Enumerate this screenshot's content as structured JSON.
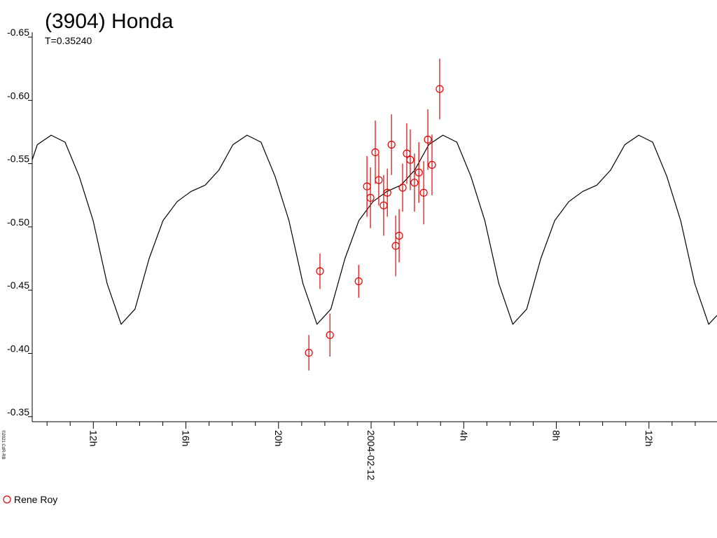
{
  "chart_data": {
    "type": "scatter",
    "title": "(3904) Honda",
    "subtitle": "T=0.35240",
    "credit": "©2021 CdR-RB",
    "y_inverted": true,
    "xlim": [
      -14.64,
      14.94
    ],
    "ylim": [
      -0.65,
      -0.346
    ],
    "xticks": [
      {
        "value": -12,
        "label": "12h"
      },
      {
        "value": -8,
        "label": "16h"
      },
      {
        "value": -4,
        "label": "20h"
      },
      {
        "value": 0,
        "label": "2004-02-12"
      },
      {
        "value": 4,
        "label": "4h"
      },
      {
        "value": 8,
        "label": "8h"
      },
      {
        "value": 12,
        "label": "12h"
      }
    ],
    "xminorticks": [
      -14,
      -13,
      -11,
      -10,
      -9,
      -7,
      -6,
      -5,
      -3,
      -2,
      -1,
      1,
      2,
      3,
      5,
      6,
      7,
      9,
      10,
      11,
      13,
      14
    ],
    "yticks": [
      -0.65,
      {
        "value": -0.6,
        "label": "-0.60"
      },
      -0.55,
      {
        "value": -0.5,
        "label": "-0.50"
      },
      -0.45,
      {
        "value": -0.4,
        "label": "-0.40"
      },
      -0.35
    ],
    "series": [
      {
        "name": "Rene Roy",
        "color": "#e00000",
        "x": [
          -2.69,
          -2.21,
          -1.78,
          -0.54,
          -0.18,
          -0.03,
          0.18,
          0.33,
          0.54,
          0.7,
          0.88,
          1.06,
          1.21,
          1.36,
          1.54,
          1.69,
          1.87,
          2.06,
          2.27,
          2.45,
          2.63,
          2.96
        ],
        "values": [
          -0.4005,
          -0.465,
          -0.4145,
          -0.457,
          -0.532,
          -0.523,
          -0.559,
          -0.537,
          -0.517,
          -0.527,
          -0.565,
          -0.485,
          -0.493,
          -0.531,
          -0.558,
          -0.553,
          -0.535,
          -0.543,
          -0.527,
          -0.569,
          -0.549,
          -0.609
        ],
        "errors": [
          0.014,
          0.014,
          0.017,
          0.013,
          0.024,
          0.024,
          0.025,
          0.02,
          0.024,
          0.019,
          0.024,
          0.024,
          0.021,
          0.019,
          0.024,
          0.024,
          0.023,
          0.024,
          0.025,
          0.024,
          0.024,
          0.024
        ]
      }
    ],
    "fit": {
      "color": "#000000",
      "x": [
        -14.64,
        -14.42,
        -13.82,
        -13.22,
        -12.61,
        -12.01,
        -11.4,
        -10.8,
        -10.2,
        -9.59,
        -8.99,
        -8.38,
        -7.78,
        -7.17,
        -6.57,
        -5.97,
        -5.36,
        -4.76,
        -4.15,
        -3.55,
        -2.94,
        -2.34,
        -1.74,
        -1.13,
        -0.53,
        0.08,
        0.68,
        1.29,
        1.89,
        2.49,
        3.1,
        3.7,
        4.31,
        4.91,
        5.52,
        6.12,
        6.72,
        7.33,
        7.93,
        8.54,
        9.14,
        9.75,
        10.35,
        10.96,
        11.56,
        12.16,
        12.77,
        13.37,
        13.98,
        14.58,
        14.94
      ],
      "values": [
        -0.553,
        -0.565,
        -0.5725,
        -0.567,
        -0.54,
        -0.505,
        -0.455,
        -0.423,
        -0.435,
        -0.475,
        -0.505,
        -0.52,
        -0.528,
        -0.533,
        -0.545,
        -0.565,
        -0.5725,
        -0.567,
        -0.54,
        -0.505,
        -0.455,
        -0.423,
        -0.435,
        -0.475,
        -0.505,
        -0.52,
        -0.528,
        -0.533,
        -0.545,
        -0.565,
        -0.5725,
        -0.567,
        -0.54,
        -0.505,
        -0.455,
        -0.423,
        -0.435,
        -0.475,
        -0.505,
        -0.52,
        -0.528,
        -0.533,
        -0.545,
        -0.565,
        -0.5725,
        -0.567,
        -0.54,
        -0.505,
        -0.455,
        -0.423,
        -0.43
      ]
    }
  }
}
